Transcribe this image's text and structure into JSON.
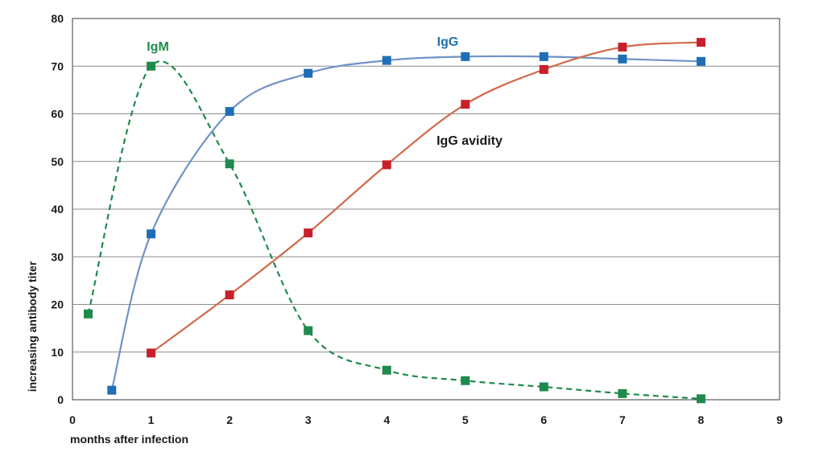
{
  "chart_data": {
    "type": "line",
    "xlabel": "months after infection",
    "ylabel": "increasing antibody titer",
    "xlim": [
      0,
      9
    ],
    "ylim": [
      0,
      80
    ],
    "x_ticks": [
      0,
      1,
      2,
      3,
      4,
      5,
      6,
      7,
      8,
      9
    ],
    "y_ticks": [
      0,
      10,
      20,
      30,
      40,
      50,
      60,
      70,
      80
    ],
    "grid": "horizontal",
    "series": [
      {
        "name": "IgM",
        "color": "#1f8a4c",
        "line_style": "dashed",
        "marker": "square",
        "x": [
          0.2,
          1,
          2,
          3,
          4,
          5,
          6,
          7,
          8
        ],
        "y": [
          18,
          70,
          49.5,
          14.5,
          6.2,
          4,
          2.7,
          1.3,
          0.2
        ]
      },
      {
        "name": "IgG",
        "color": "#1f6fb5",
        "line_color": "#6f93c8",
        "line_style": "solid",
        "marker": "square",
        "x": [
          0.5,
          1,
          2,
          3,
          4,
          5,
          6,
          7,
          8
        ],
        "y": [
          2,
          34.8,
          60.5,
          68.5,
          71.2,
          72,
          72,
          71.5,
          71
        ]
      },
      {
        "name": "IgG avidity",
        "color": "#c8202a",
        "line_color": "#d2694a",
        "line_style": "solid",
        "marker": "square",
        "x": [
          1,
          2,
          3,
          4,
          5,
          6,
          7,
          8
        ],
        "y": [
          9.8,
          22,
          35,
          49.3,
          62,
          69.3,
          74,
          75
        ]
      }
    ]
  }
}
